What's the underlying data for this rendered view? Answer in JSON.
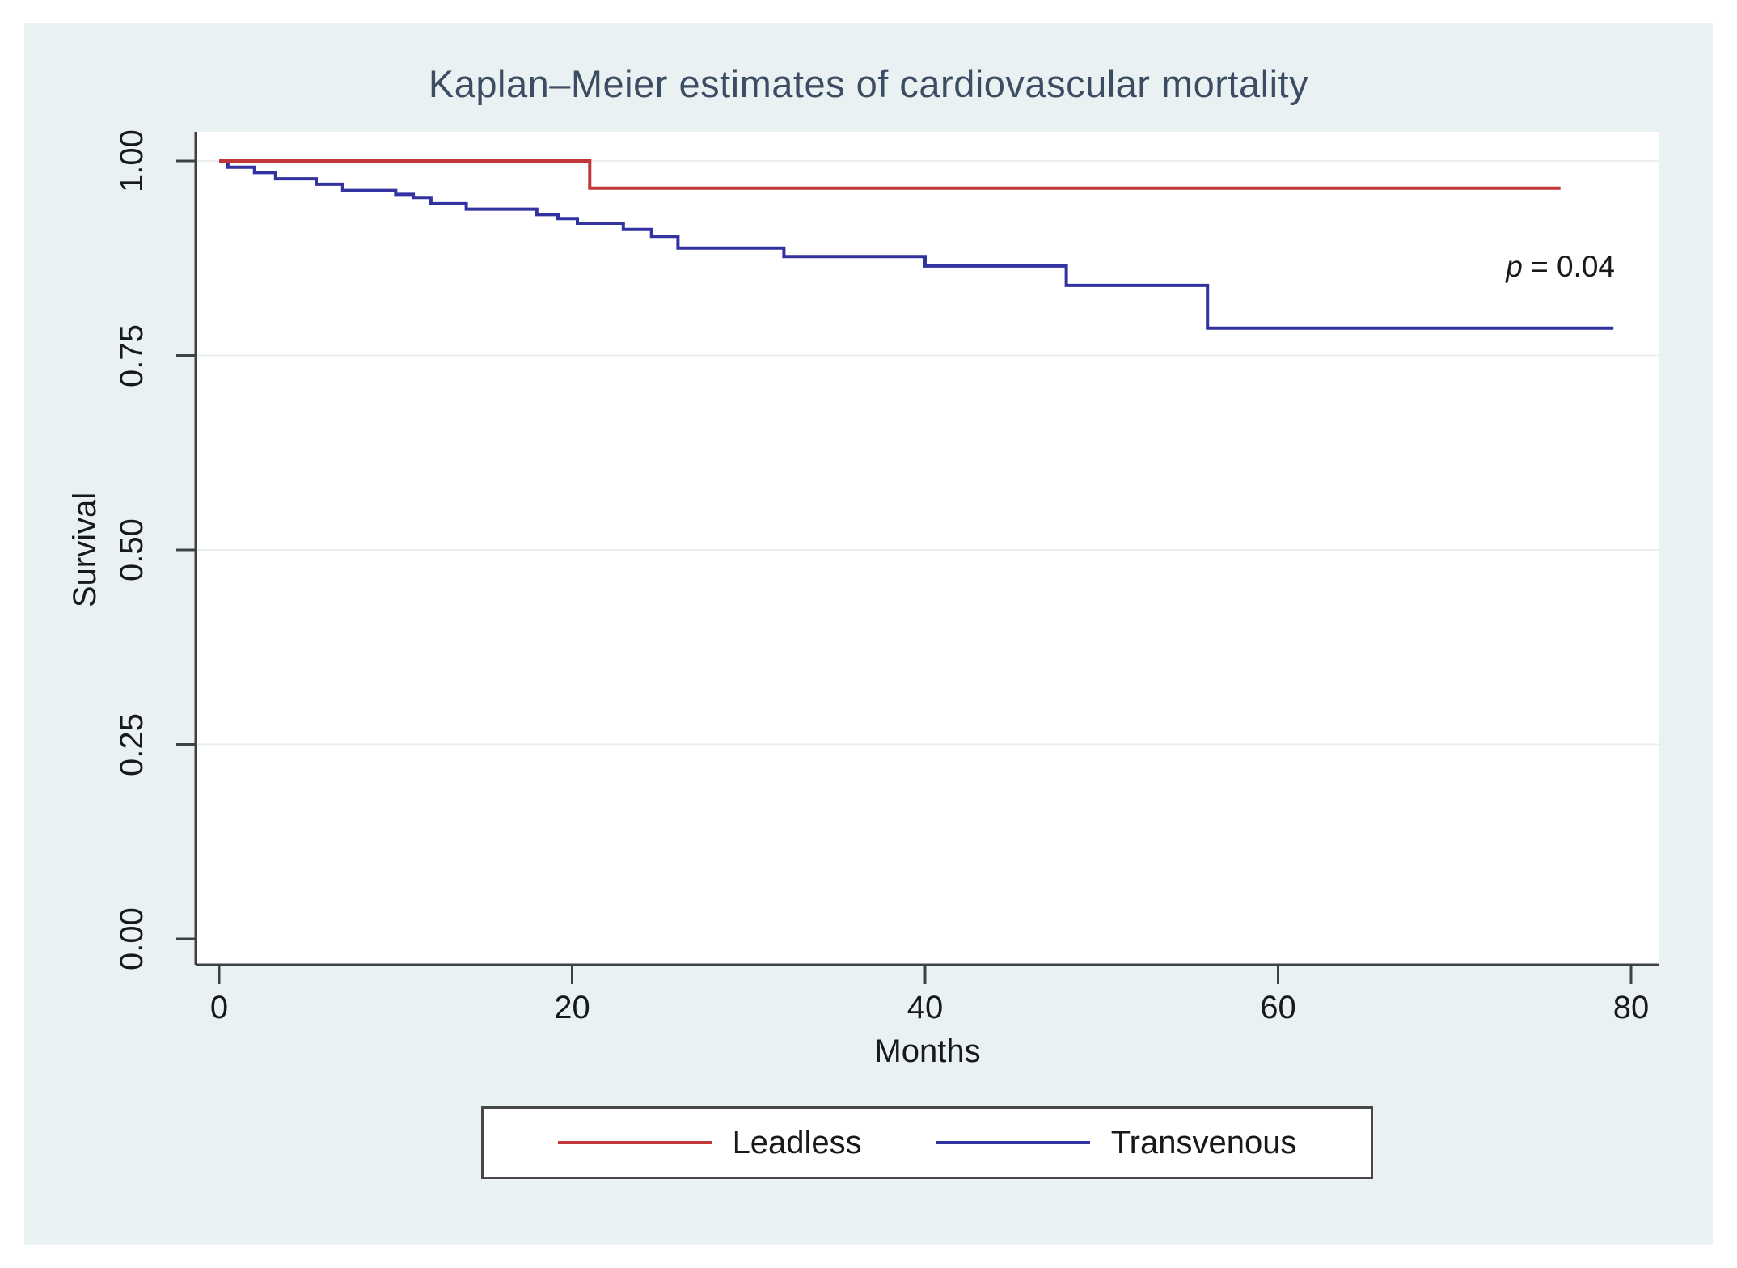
{
  "title": "Kaplan–Meier estimates of cardiovascular mortality",
  "annotation": {
    "p_symbol": "p",
    "p_rest": " = 0.04"
  },
  "axes": {
    "y_label": "Survival",
    "x_label": "Months",
    "y_ticks": [
      {
        "label": "0.00",
        "value": 0.0
      },
      {
        "label": "0.25",
        "value": 0.25
      },
      {
        "label": "0.50",
        "value": 0.5
      },
      {
        "label": "0.75",
        "value": 0.75
      },
      {
        "label": "1.00",
        "value": 1.0
      }
    ],
    "x_ticks": [
      {
        "label": "0",
        "value": 0
      },
      {
        "label": "20",
        "value": 20
      },
      {
        "label": "40",
        "value": 40
      },
      {
        "label": "60",
        "value": 60
      },
      {
        "label": "80",
        "value": 80
      }
    ]
  },
  "legend": {
    "items": [
      {
        "label": "Leadless",
        "color": "#c13737"
      },
      {
        "label": "Transvenous",
        "color": "#3232a0"
      }
    ]
  },
  "colors": {
    "figure_background": "#eaf1f3",
    "plot_background": "#ffffff",
    "gridline": "#e9eef0",
    "axis": "#3f4245",
    "title_text": "#3c4c63",
    "tick_text": "#17191c",
    "leadless_line": "#c13737",
    "transvenous_line": "#3232a0"
  },
  "chart_data": {
    "type": "line",
    "subtype": "kaplan-meier-step",
    "title": "Kaplan–Meier estimates of cardiovascular mortality",
    "xlabel": "Months",
    "ylabel": "Survival",
    "xlim": [
      0,
      80
    ],
    "ylim": [
      0.0,
      1.0
    ],
    "grid": "horizontal-light",
    "legend_position": "bottom-center",
    "annotation_text": "p = 0.04",
    "series": [
      {
        "name": "Leadless",
        "color": "#c13737",
        "steps": [
          [
            0,
            1.0
          ],
          [
            21,
            0.965
          ]
        ],
        "end_time": 76
      },
      {
        "name": "Transvenous",
        "color": "#3232a0",
        "steps": [
          [
            0,
            1.0
          ],
          [
            0.5,
            0.992
          ],
          [
            2.0,
            0.985
          ],
          [
            3.2,
            0.977
          ],
          [
            5.5,
            0.97
          ],
          [
            7.0,
            0.962
          ],
          [
            10.0,
            0.957
          ],
          [
            11.0,
            0.953
          ],
          [
            12.0,
            0.945
          ],
          [
            14.0,
            0.938
          ],
          [
            18.0,
            0.931
          ],
          [
            19.2,
            0.926
          ],
          [
            20.3,
            0.92
          ],
          [
            22.9,
            0.912
          ],
          [
            24.5,
            0.903
          ],
          [
            26.0,
            0.888
          ],
          [
            32.0,
            0.877
          ],
          [
            40.0,
            0.865
          ],
          [
            48.0,
            0.84
          ],
          [
            56.0,
            0.785
          ]
        ],
        "end_time": 79
      }
    ]
  }
}
